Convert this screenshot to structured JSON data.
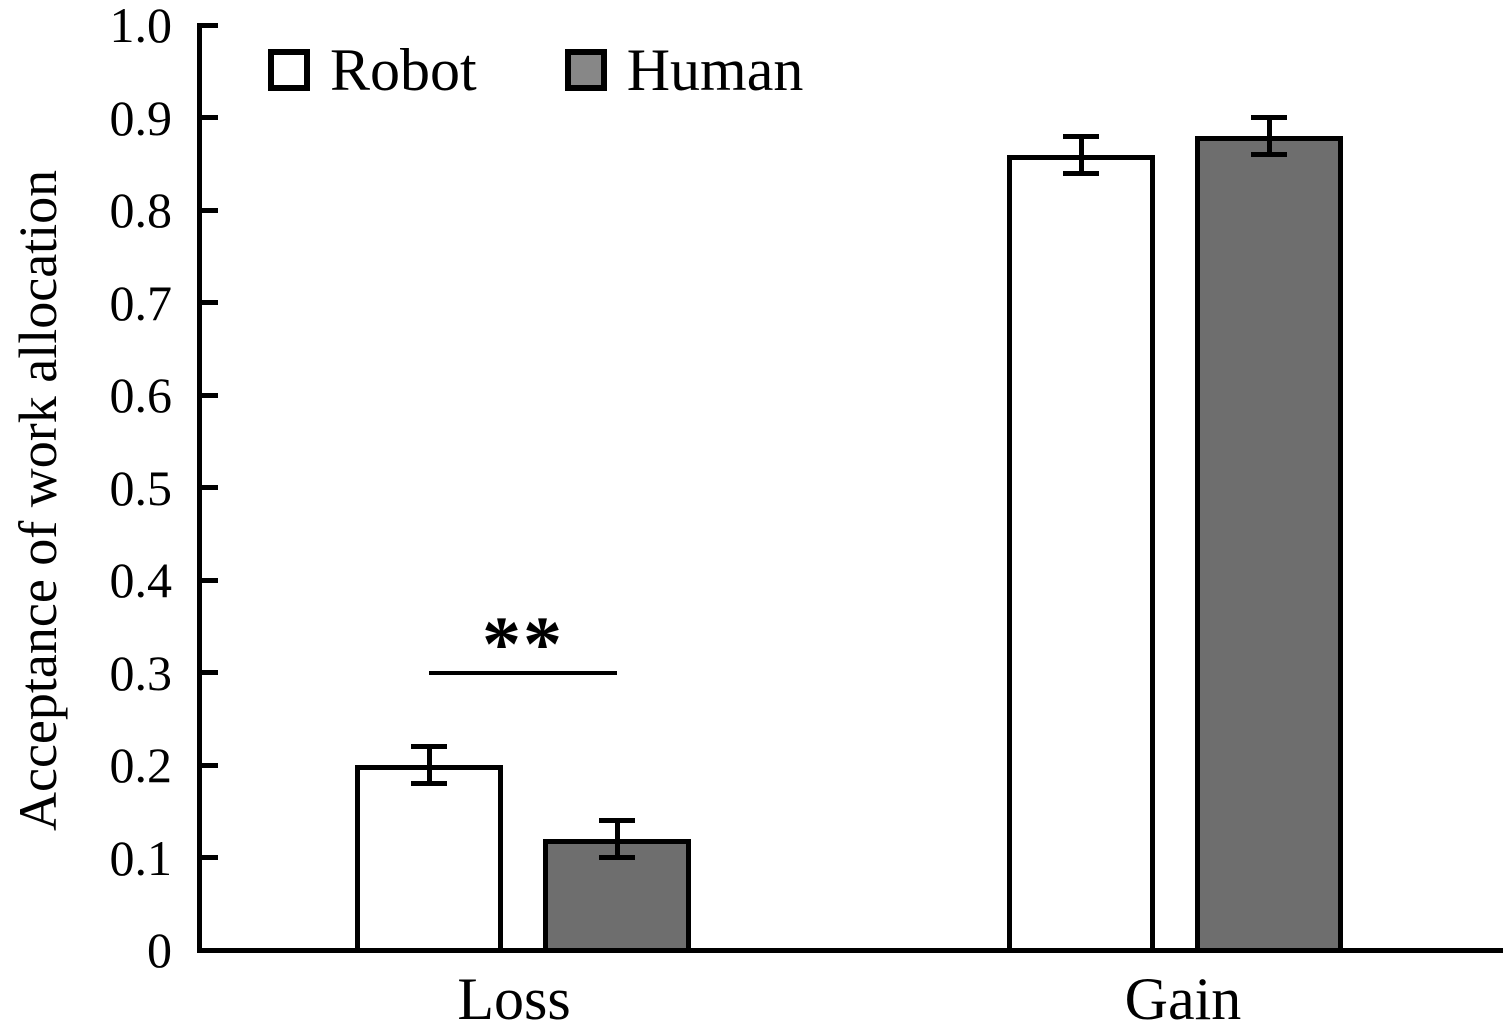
{
  "chart_data": {
    "type": "bar",
    "title": "",
    "xlabel": "",
    "ylabel": "Acceptance of work allocation",
    "categories": [
      "Loss",
      "Gain"
    ],
    "series": [
      {
        "name": "Robot",
        "values": [
          0.2,
          0.86
        ],
        "errors": [
          0.02,
          0.02
        ],
        "fill": "#ffffff"
      },
      {
        "name": "Human",
        "values": [
          0.12,
          0.88
        ],
        "errors": [
          0.02,
          0.02
        ],
        "fill": "#6e6e6e"
      }
    ],
    "ylim": [
      0,
      1.0
    ],
    "yticks": [
      {
        "value": 1.0,
        "label": "1.0"
      },
      {
        "value": 0.9,
        "label": "0.9"
      },
      {
        "value": 0.8,
        "label": "0.8"
      },
      {
        "value": 0.7,
        "label": "0.7"
      },
      {
        "value": 0.6,
        "label": "0.6"
      },
      {
        "value": 0.5,
        "label": "0.5"
      },
      {
        "value": 0.4,
        "label": "0.4"
      },
      {
        "value": 0.3,
        "label": "0.3"
      },
      {
        "value": 0.2,
        "label": "0.2"
      },
      {
        "value": 0.1,
        "label": "0.1"
      },
      {
        "value": 0.0,
        "label": "0"
      }
    ],
    "grid": false,
    "legend_position": "top-left-inside",
    "error_bars": true,
    "significance": {
      "category": "Loss",
      "label": "**",
      "line_value": 0.3
    }
  },
  "colors": {
    "foreground": "#000000",
    "background": "#ffffff",
    "robot_bar_fill": "#ffffff",
    "human_bar_fill": "#6e6e6e",
    "legend_human_swatch_fill": "#878787"
  }
}
